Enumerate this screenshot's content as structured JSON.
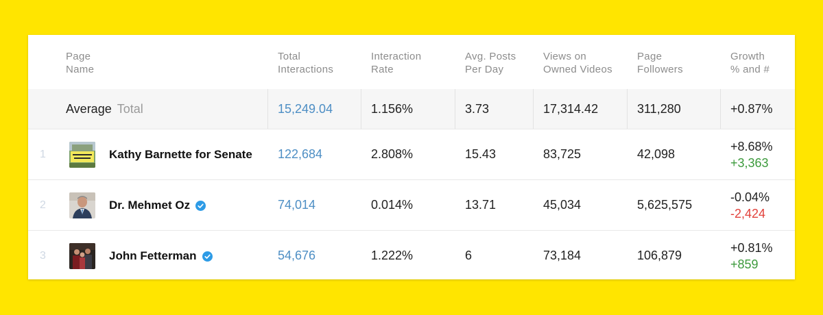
{
  "header": {
    "page_name": [
      "Page",
      "Name"
    ],
    "total_interactions": [
      "Total",
      "Interactions"
    ],
    "interaction_rate": [
      "Interaction",
      "Rate"
    ],
    "avg_posts": [
      "Avg. Posts",
      "Per Day"
    ],
    "views": [
      "Views on",
      "Owned Videos"
    ],
    "followers": [
      "Page",
      "Followers"
    ],
    "growth": [
      "Growth",
      "% and #"
    ]
  },
  "average": {
    "label": "Average",
    "sublabel": "Total",
    "total_interactions": "15,249.04",
    "interaction_rate": "1.156%",
    "avg_posts": "3.73",
    "views": "17,314.42",
    "followers": "311,280",
    "growth_pct": "+0.87%"
  },
  "rows": [
    {
      "rank": "1",
      "name": "Kathy Barnette for Senate",
      "verified": false,
      "thumb": "sign-photo",
      "total_interactions": "122,684",
      "interaction_rate": "2.808%",
      "avg_posts": "15.43",
      "views": "83,725",
      "followers": "42,098",
      "growth_pct": "+8.68%",
      "growth_num": "+3,363",
      "growth_dir": "positive"
    },
    {
      "rank": "2",
      "name": "Dr. Mehmet Oz",
      "verified": true,
      "thumb": "portrait-photo",
      "total_interactions": "74,014",
      "interaction_rate": "0.014%",
      "avg_posts": "13.71",
      "views": "45,034",
      "followers": "5,625,575",
      "growth_pct": "-0.04%",
      "growth_num": "-2,424",
      "growth_dir": "negative"
    },
    {
      "rank": "3",
      "name": "John Fetterman",
      "verified": true,
      "thumb": "group-photo",
      "total_interactions": "54,676",
      "interaction_rate": "1.222%",
      "avg_posts": "6",
      "views": "73,184",
      "followers": "106,879",
      "growth_pct": "+0.81%",
      "growth_num": "+859",
      "growth_dir": "positive"
    }
  ],
  "colors": {
    "background": "#FFE500",
    "link": "#4d8ec4",
    "positive": "#3c9a3c",
    "negative": "#e2413b",
    "verified": "#2d9be6"
  }
}
